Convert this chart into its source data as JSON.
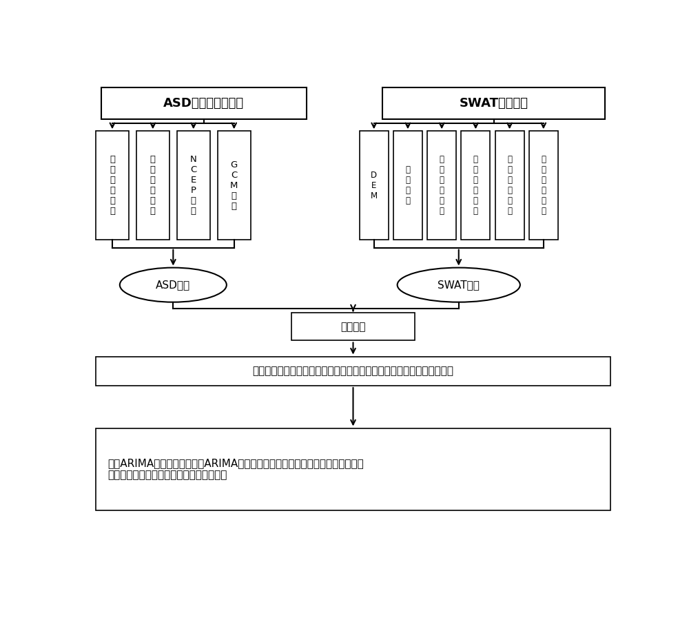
{
  "bg_color": "#ffffff",
  "line_color": "#000000",
  "text_color": "#000000",
  "fig_width": 10.0,
  "fig_height": 9.06,
  "asd_title": "ASD降尺度模型构建",
  "swat_title": "SWAT模型构建",
  "asd_inputs": [
    "实\n测\n气\n温\n数\n据",
    "实\n测\n降\n水\n数\n据",
    "N\nC\nE\nP\n数\n据",
    "G\nC\nM\n数\n据"
  ],
  "swat_inputs": [
    "D\nE\nM",
    "土\n壤\n数\n据",
    "土\n地\n利\n用\n数\n据",
    "实\n测\n降\n水\n数\n据",
    "实\n测\n气\n温\n数\n据",
    "实\n测\n径\n流\n数\n据"
  ],
  "asd_model": "ASD模型",
  "swat_model": "SWAT模型",
  "coupling": "模型耦合",
  "step3": "进行气候变化下未来径流模拟，并由气候变化下未来日径流计算出年洪峰",
  "step4_line1": "建立ARIMA模型，采用建立的ARIMA模型做洪峰序列的随机模拟，计算出未来气候",
  "step4_line2": "变化下超设计洪水位和校核洪水位的风险率"
}
